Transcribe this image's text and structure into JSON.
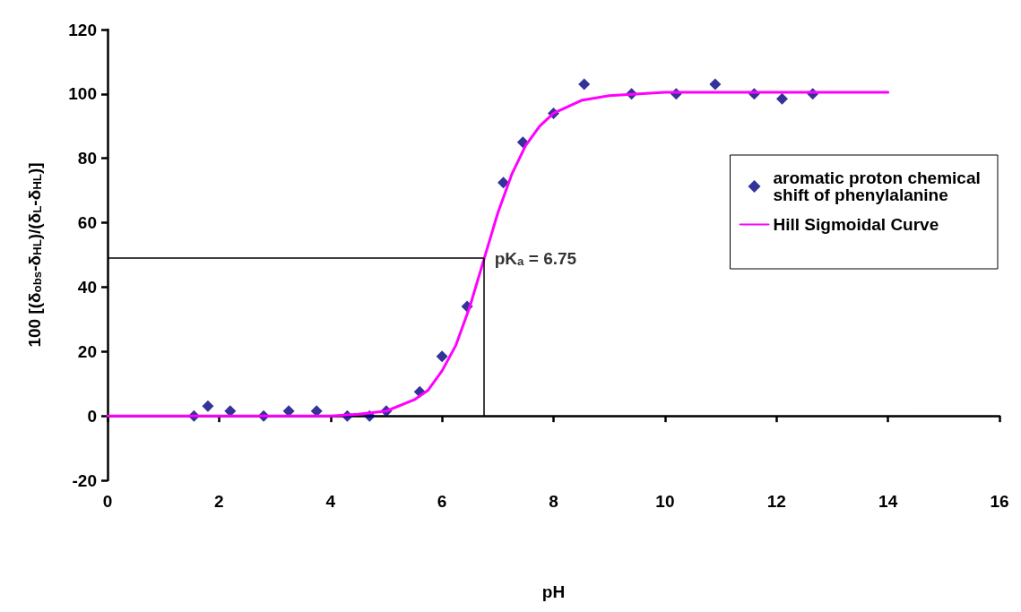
{
  "chart_data": {
    "type": "scatter",
    "xlabel": "pH",
    "ylabel": "100 [(δ$_{obs}$-δ$_{HL}$)/(δ$_{L}$-δ$_{HL}$)]",
    "xlim": [
      0,
      16
    ],
    "xticks": [
      0,
      2,
      4,
      6,
      8,
      10,
      12,
      14,
      16
    ],
    "ylim": [
      -20,
      120
    ],
    "yticks": [
      -20,
      0,
      20,
      40,
      60,
      80,
      100,
      120
    ],
    "legend": "right",
    "annotations": [
      {
        "text": "pK$_{a}$ = 6.75",
        "x": 6.75,
        "y": 49
      }
    ],
    "series": [
      {
        "name": "aromatic proton chemical shift of phenylalanine",
        "marker": "diamond",
        "color": "#000080",
        "x": [
          1.55,
          1.8,
          2.2,
          2.8,
          3.25,
          3.75,
          4.3,
          4.7,
          5.0,
          5.6,
          6.0,
          6.45,
          7.1,
          7.45,
          8.0,
          8.55,
          9.4,
          10.2,
          10.9,
          11.6,
          12.1,
          12.65
        ],
        "values": [
          0,
          3,
          1.5,
          0,
          1.5,
          1.5,
          0,
          0,
          1.5,
          7.5,
          18.5,
          34,
          72.5,
          85,
          94,
          103,
          100,
          100,
          103,
          100,
          98.5,
          100
        ]
      },
      {
        "name": "Hill Sigmoidal Curve",
        "type": "line",
        "marker": "none",
        "line_style": "solid",
        "color": "#ff00ff",
        "x": [
          0,
          1,
          2,
          3,
          4,
          4.5,
          5,
          5.5,
          5.75,
          6,
          6.25,
          6.5,
          6.75,
          7,
          7.25,
          7.5,
          7.75,
          8,
          8.5,
          9,
          10,
          11,
          12,
          13,
          14
        ],
        "values": [
          0,
          0,
          0,
          0,
          0,
          0.5,
          1.5,
          5,
          8,
          14,
          22,
          34,
          48.5,
          63,
          75,
          84,
          90,
          94,
          98,
          99.5,
          100.5,
          100.5,
          100.5,
          100.5,
          100.5
        ]
      }
    ]
  }
}
